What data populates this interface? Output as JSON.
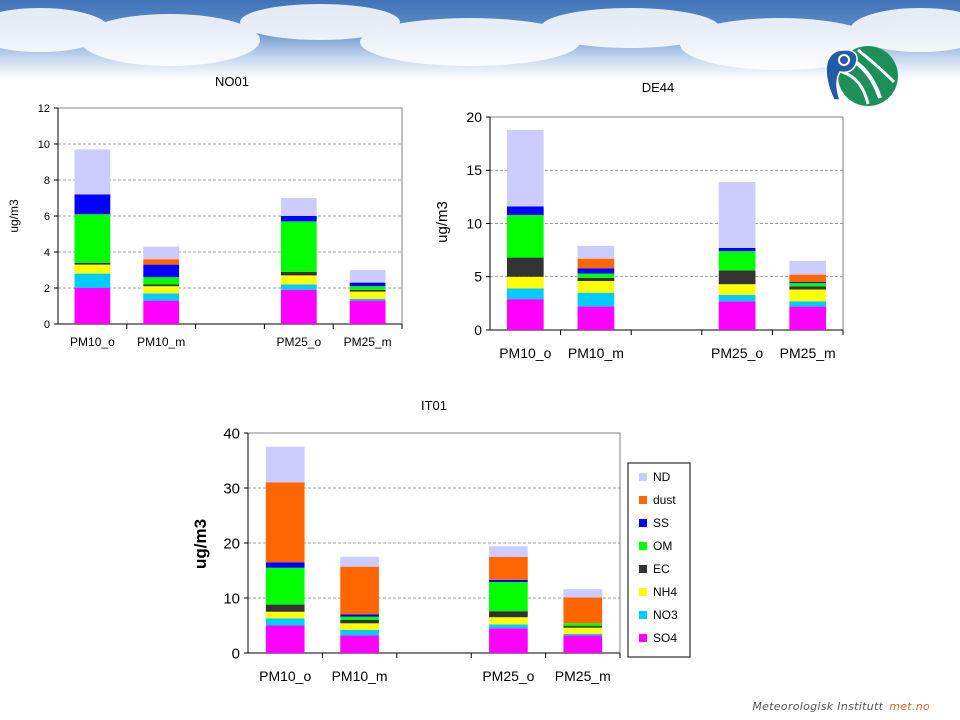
{
  "footer": {
    "institute": "Meteorologisk Institutt",
    "brand": "met.no"
  },
  "colors": {
    "SO4": "#ff00ff",
    "NO3": "#00ccff",
    "NH4": "#ffff00",
    "EC": "#333333",
    "OM": "#00ff00",
    "SS": "#0000ff",
    "dust": "#ff6600",
    "ND": "#ccccff"
  },
  "icons": {
    "logo": "met-institute-globe-logo"
  },
  "legend": {
    "entries": [
      "ND",
      "dust",
      "SS",
      "OM",
      "EC",
      "NH4",
      "NO3",
      "SO4"
    ],
    "placement": "right of IT01 chart"
  },
  "chart_data": [
    {
      "type": "bar",
      "stacked": true,
      "title": "NO01",
      "xlabel": "",
      "ylabel": "ug/m3",
      "ylim": [
        0,
        12
      ],
      "yticks": [
        0,
        2,
        4,
        6,
        8,
        10,
        12
      ],
      "grid": true,
      "categories": [
        "PM10_o",
        "PM10_m",
        "",
        "PM25_o",
        "PM25_m"
      ],
      "series": [
        {
          "name": "SO4",
          "values": [
            2.0,
            1.3,
            null,
            1.9,
            1.3
          ]
        },
        {
          "name": "NO3",
          "values": [
            0.8,
            0.4,
            null,
            0.3,
            0.1
          ]
        },
        {
          "name": "NH4",
          "values": [
            0.5,
            0.4,
            null,
            0.5,
            0.4
          ]
        },
        {
          "name": "EC",
          "values": [
            0.1,
            0.1,
            null,
            0.2,
            0.1
          ]
        },
        {
          "name": "OM",
          "values": [
            2.7,
            0.4,
            null,
            2.8,
            0.2
          ]
        },
        {
          "name": "SS",
          "values": [
            1.1,
            0.7,
            null,
            0.3,
            0.2
          ]
        },
        {
          "name": "dust",
          "values": [
            0.0,
            0.3,
            null,
            0.0,
            0.0
          ]
        },
        {
          "name": "ND",
          "values": [
            2.5,
            0.7,
            null,
            1.0,
            0.7
          ]
        }
      ]
    },
    {
      "type": "bar",
      "stacked": true,
      "title": "DE44",
      "xlabel": "",
      "ylabel": "ug/m3",
      "ylim": [
        0,
        20
      ],
      "yticks": [
        0,
        5,
        10,
        15,
        20
      ],
      "grid": true,
      "categories": [
        "PM10_o",
        "PM10_m",
        "",
        "PM25_o",
        "PM25_m"
      ],
      "series": [
        {
          "name": "SO4",
          "values": [
            2.9,
            2.2,
            null,
            2.7,
            2.2
          ]
        },
        {
          "name": "NO3",
          "values": [
            1.0,
            1.3,
            null,
            0.6,
            0.5
          ]
        },
        {
          "name": "NH4",
          "values": [
            1.1,
            1.1,
            null,
            1.0,
            1.1
          ]
        },
        {
          "name": "EC",
          "values": [
            1.8,
            0.3,
            null,
            1.3,
            0.3
          ]
        },
        {
          "name": "OM",
          "values": [
            4.0,
            0.4,
            null,
            1.8,
            0.3
          ]
        },
        {
          "name": "SS",
          "values": [
            0.8,
            0.5,
            null,
            0.3,
            0.1
          ]
        },
        {
          "name": "dust",
          "values": [
            0.0,
            0.9,
            null,
            0.0,
            0.7
          ]
        },
        {
          "name": "ND",
          "values": [
            7.2,
            1.2,
            null,
            6.2,
            1.3
          ]
        }
      ]
    },
    {
      "type": "bar",
      "stacked": true,
      "title": "IT01",
      "xlabel": "",
      "ylabel": "ug/m3",
      "ylim": [
        0,
        40
      ],
      "yticks": [
        0,
        10,
        20,
        30,
        40
      ],
      "grid": true,
      "legend": "right",
      "categories": [
        "PM10_o",
        "PM10_m",
        "",
        "PM25_o",
        "PM25_m"
      ],
      "series": [
        {
          "name": "SO4",
          "values": [
            5.0,
            3.2,
            null,
            4.5,
            3.2
          ]
        },
        {
          "name": "NO3",
          "values": [
            1.3,
            1.0,
            null,
            0.7,
            0.3
          ]
        },
        {
          "name": "NH4",
          "values": [
            1.2,
            1.2,
            null,
            1.3,
            1.1
          ]
        },
        {
          "name": "EC",
          "values": [
            1.3,
            0.6,
            null,
            1.1,
            0.3
          ]
        },
        {
          "name": "OM",
          "values": [
            6.7,
            0.6,
            null,
            5.3,
            0.5
          ]
        },
        {
          "name": "SS",
          "values": [
            1.0,
            0.4,
            null,
            0.4,
            0.0
          ]
        },
        {
          "name": "dust",
          "values": [
            14.5,
            8.7,
            null,
            4.2,
            4.7
          ]
        },
        {
          "name": "ND",
          "values": [
            6.5,
            1.8,
            null,
            1.9,
            1.5
          ]
        }
      ]
    }
  ]
}
